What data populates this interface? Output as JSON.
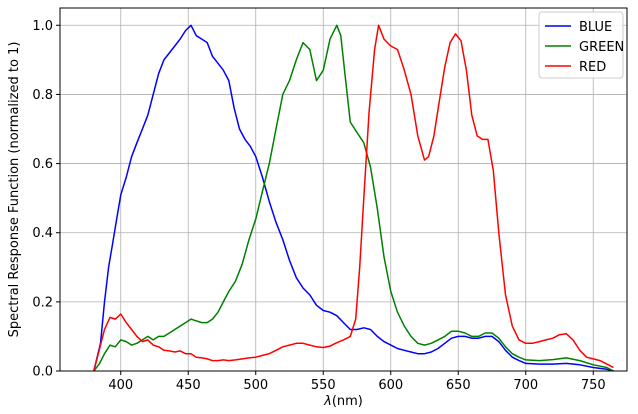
{
  "chart_data": {
    "type": "line",
    "title": "",
    "xlabel": "λ(nm)",
    "xlabel_prefix": "λ",
    "xlabel_suffix": "(nm)",
    "ylabel": "Spectral Response Function (normalized to 1)",
    "xlim": [
      355,
      775
    ],
    "ylim": [
      0,
      1.05
    ],
    "xticks": [
      400,
      450,
      500,
      550,
      600,
      650,
      700,
      750
    ],
    "yticks": [
      0.0,
      0.2,
      0.4,
      0.6,
      0.8,
      1.0
    ],
    "xtick_labels": [
      "400",
      "450",
      "500",
      "550",
      "600",
      "650",
      "700",
      "750"
    ],
    "ytick_labels": [
      "0.0",
      "0.2",
      "0.4",
      "0.6",
      "0.8",
      "1.0"
    ],
    "grid": true,
    "legend_position": "top-right",
    "series": [
      {
        "name": "BLUE",
        "color": "#0000ff",
        "points": [
          [
            380,
            0
          ],
          [
            385,
            0.08
          ],
          [
            388,
            0.2
          ],
          [
            391,
            0.3
          ],
          [
            394,
            0.37
          ],
          [
            397,
            0.44
          ],
          [
            400,
            0.51
          ],
          [
            404,
            0.56
          ],
          [
            408,
            0.62
          ],
          [
            412,
            0.66
          ],
          [
            416,
            0.7
          ],
          [
            420,
            0.74
          ],
          [
            424,
            0.8
          ],
          [
            428,
            0.86
          ],
          [
            432,
            0.9
          ],
          [
            436,
            0.92
          ],
          [
            440,
            0.94
          ],
          [
            444,
            0.96
          ],
          [
            448,
            0.985
          ],
          [
            452,
            1.0
          ],
          [
            456,
            0.97
          ],
          [
            460,
            0.96
          ],
          [
            464,
            0.95
          ],
          [
            468,
            0.91
          ],
          [
            472,
            0.89
          ],
          [
            476,
            0.87
          ],
          [
            480,
            0.84
          ],
          [
            484,
            0.76
          ],
          [
            488,
            0.7
          ],
          [
            492,
            0.67
          ],
          [
            496,
            0.65
          ],
          [
            500,
            0.62
          ],
          [
            505,
            0.56
          ],
          [
            510,
            0.49
          ],
          [
            515,
            0.43
          ],
          [
            520,
            0.38
          ],
          [
            525,
            0.32
          ],
          [
            530,
            0.27
          ],
          [
            535,
            0.24
          ],
          [
            540,
            0.22
          ],
          [
            545,
            0.19
          ],
          [
            550,
            0.175
          ],
          [
            555,
            0.17
          ],
          [
            560,
            0.16
          ],
          [
            565,
            0.14
          ],
          [
            570,
            0.12
          ],
          [
            575,
            0.12
          ],
          [
            580,
            0.125
          ],
          [
            585,
            0.12
          ],
          [
            590,
            0.1
          ],
          [
            595,
            0.085
          ],
          [
            600,
            0.075
          ],
          [
            605,
            0.065
          ],
          [
            610,
            0.06
          ],
          [
            615,
            0.055
          ],
          [
            620,
            0.05
          ],
          [
            625,
            0.05
          ],
          [
            630,
            0.055
          ],
          [
            635,
            0.065
          ],
          [
            640,
            0.08
          ],
          [
            645,
            0.095
          ],
          [
            650,
            0.1
          ],
          [
            655,
            0.1
          ],
          [
            660,
            0.095
          ],
          [
            665,
            0.095
          ],
          [
            670,
            0.1
          ],
          [
            675,
            0.1
          ],
          [
            680,
            0.085
          ],
          [
            685,
            0.06
          ],
          [
            690,
            0.04
          ],
          [
            695,
            0.03
          ],
          [
            700,
            0.022
          ],
          [
            710,
            0.02
          ],
          [
            720,
            0.02
          ],
          [
            730,
            0.022
          ],
          [
            740,
            0.018
          ],
          [
            750,
            0.01
          ],
          [
            760,
            0.005
          ],
          [
            765,
            0
          ]
        ]
      },
      {
        "name": "GREEN",
        "color": "#008000",
        "points": [
          [
            380,
            0
          ],
          [
            384,
            0.02
          ],
          [
            388,
            0.05
          ],
          [
            392,
            0.075
          ],
          [
            396,
            0.07
          ],
          [
            400,
            0.09
          ],
          [
            404,
            0.085
          ],
          [
            408,
            0.075
          ],
          [
            412,
            0.08
          ],
          [
            416,
            0.09
          ],
          [
            420,
            0.1
          ],
          [
            424,
            0.09
          ],
          [
            428,
            0.1
          ],
          [
            432,
            0.1
          ],
          [
            436,
            0.11
          ],
          [
            440,
            0.12
          ],
          [
            444,
            0.13
          ],
          [
            448,
            0.14
          ],
          [
            452,
            0.15
          ],
          [
            456,
            0.145
          ],
          [
            460,
            0.14
          ],
          [
            464,
            0.14
          ],
          [
            468,
            0.15
          ],
          [
            472,
            0.17
          ],
          [
            476,
            0.2
          ],
          [
            480,
            0.23
          ],
          [
            485,
            0.26
          ],
          [
            490,
            0.31
          ],
          [
            495,
            0.38
          ],
          [
            500,
            0.44
          ],
          [
            505,
            0.52
          ],
          [
            510,
            0.6
          ],
          [
            515,
            0.7
          ],
          [
            520,
            0.8
          ],
          [
            525,
            0.84
          ],
          [
            530,
            0.9
          ],
          [
            535,
            0.95
          ],
          [
            540,
            0.93
          ],
          [
            545,
            0.84
          ],
          [
            550,
            0.87
          ],
          [
            555,
            0.96
          ],
          [
            560,
            1.0
          ],
          [
            563,
            0.97
          ],
          [
            566,
            0.86
          ],
          [
            570,
            0.72
          ],
          [
            575,
            0.69
          ],
          [
            580,
            0.66
          ],
          [
            585,
            0.59
          ],
          [
            590,
            0.47
          ],
          [
            595,
            0.33
          ],
          [
            600,
            0.23
          ],
          [
            605,
            0.17
          ],
          [
            610,
            0.13
          ],
          [
            615,
            0.1
          ],
          [
            620,
            0.08
          ],
          [
            625,
            0.075
          ],
          [
            630,
            0.08
          ],
          [
            635,
            0.09
          ],
          [
            640,
            0.1
          ],
          [
            645,
            0.115
          ],
          [
            650,
            0.115
          ],
          [
            655,
            0.11
          ],
          [
            660,
            0.1
          ],
          [
            665,
            0.1
          ],
          [
            670,
            0.11
          ],
          [
            675,
            0.11
          ],
          [
            680,
            0.095
          ],
          [
            685,
            0.07
          ],
          [
            690,
            0.05
          ],
          [
            695,
            0.04
          ],
          [
            700,
            0.032
          ],
          [
            710,
            0.03
          ],
          [
            720,
            0.033
          ],
          [
            730,
            0.038
          ],
          [
            740,
            0.03
          ],
          [
            750,
            0.018
          ],
          [
            760,
            0.01
          ],
          [
            765,
            0
          ]
        ]
      },
      {
        "name": "RED",
        "color": "#ff0000",
        "points": [
          [
            380,
            0
          ],
          [
            384,
            0.06
          ],
          [
            388,
            0.12
          ],
          [
            392,
            0.155
          ],
          [
            396,
            0.15
          ],
          [
            400,
            0.165
          ],
          [
            404,
            0.14
          ],
          [
            408,
            0.12
          ],
          [
            412,
            0.1
          ],
          [
            416,
            0.085
          ],
          [
            420,
            0.09
          ],
          [
            424,
            0.075
          ],
          [
            428,
            0.07
          ],
          [
            432,
            0.06
          ],
          [
            436,
            0.058
          ],
          [
            440,
            0.055
          ],
          [
            444,
            0.058
          ],
          [
            448,
            0.05
          ],
          [
            452,
            0.05
          ],
          [
            456,
            0.04
          ],
          [
            460,
            0.038
          ],
          [
            464,
            0.035
          ],
          [
            468,
            0.03
          ],
          [
            472,
            0.03
          ],
          [
            476,
            0.032
          ],
          [
            480,
            0.03
          ],
          [
            485,
            0.032
          ],
          [
            490,
            0.035
          ],
          [
            495,
            0.038
          ],
          [
            500,
            0.04
          ],
          [
            505,
            0.045
          ],
          [
            510,
            0.05
          ],
          [
            515,
            0.06
          ],
          [
            520,
            0.07
          ],
          [
            525,
            0.075
          ],
          [
            530,
            0.08
          ],
          [
            535,
            0.08
          ],
          [
            540,
            0.075
          ],
          [
            545,
            0.07
          ],
          [
            550,
            0.068
          ],
          [
            555,
            0.072
          ],
          [
            560,
            0.082
          ],
          [
            565,
            0.09
          ],
          [
            570,
            0.1
          ],
          [
            574,
            0.15
          ],
          [
            577,
            0.3
          ],
          [
            580,
            0.5
          ],
          [
            584,
            0.75
          ],
          [
            588,
            0.93
          ],
          [
            591,
            1.0
          ],
          [
            595,
            0.96
          ],
          [
            600,
            0.94
          ],
          [
            605,
            0.93
          ],
          [
            610,
            0.87
          ],
          [
            615,
            0.8
          ],
          [
            620,
            0.68
          ],
          [
            625,
            0.61
          ],
          [
            628,
            0.62
          ],
          [
            632,
            0.68
          ],
          [
            636,
            0.78
          ],
          [
            640,
            0.88
          ],
          [
            644,
            0.95
          ],
          [
            648,
            0.975
          ],
          [
            652,
            0.955
          ],
          [
            656,
            0.87
          ],
          [
            660,
            0.74
          ],
          [
            664,
            0.68
          ],
          [
            668,
            0.67
          ],
          [
            672,
            0.67
          ],
          [
            676,
            0.58
          ],
          [
            680,
            0.4
          ],
          [
            685,
            0.22
          ],
          [
            690,
            0.13
          ],
          [
            695,
            0.09
          ],
          [
            700,
            0.08
          ],
          [
            705,
            0.08
          ],
          [
            710,
            0.085
          ],
          [
            715,
            0.09
          ],
          [
            720,
            0.095
          ],
          [
            725,
            0.105
          ],
          [
            730,
            0.108
          ],
          [
            735,
            0.09
          ],
          [
            740,
            0.06
          ],
          [
            745,
            0.04
          ],
          [
            750,
            0.035
          ],
          [
            755,
            0.03
          ],
          [
            760,
            0.02
          ],
          [
            765,
            0.01
          ]
        ]
      }
    ]
  }
}
